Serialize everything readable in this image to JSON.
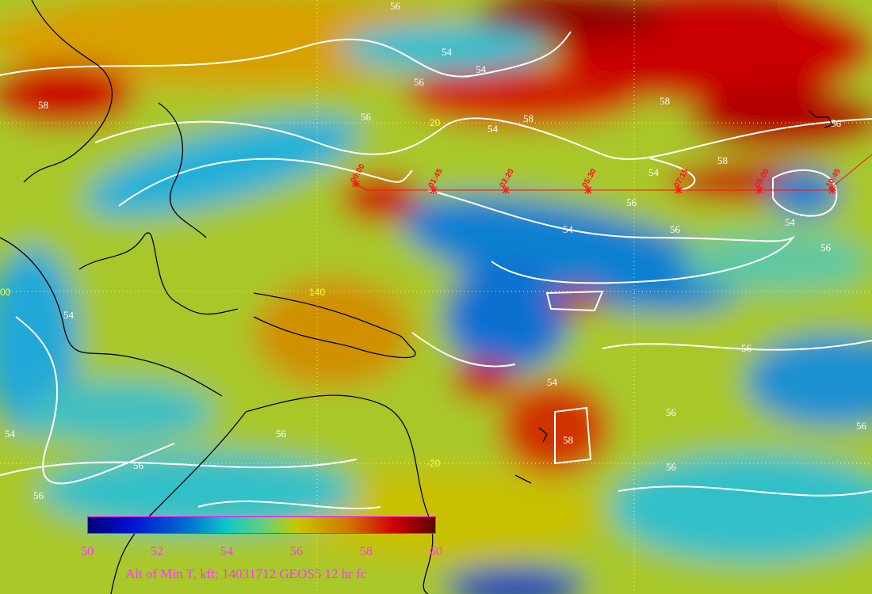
{
  "map": {
    "field": "Altitude of minimum temperature (kft)",
    "colors": {
      "low": "#00007a",
      "mid": "#c8c800",
      "high": "#600000",
      "contour": "#ffffff",
      "coast": "#000000",
      "track": "#ff1010",
      "grid": "#ffff33"
    },
    "grid_labels": {
      "lat_north": "20",
      "lat_equator": "00",
      "lat_south": "-20",
      "lon_140": "140"
    },
    "contour_labels": [
      "58",
      "54",
      "56",
      "54",
      "56",
      "58",
      "54",
      "58",
      "54",
      "56",
      "54",
      "56",
      "54",
      "58",
      "56",
      "54",
      "56",
      "56",
      "56",
      "56",
      "58",
      "56",
      "54",
      "56",
      "56",
      "56",
      "56",
      "54"
    ],
    "flight_track": {
      "waypoints": [
        "00:00",
        "01:45",
        "03:20",
        "05:30",
        "07:15",
        "09:00",
        "10:45"
      ]
    }
  },
  "colorbar": {
    "ticks": [
      "50",
      "52",
      "54",
      "56",
      "58",
      "60"
    ],
    "title": "Alt of Min T, kft; 14031712 GEOS5 12 hr fc"
  }
}
